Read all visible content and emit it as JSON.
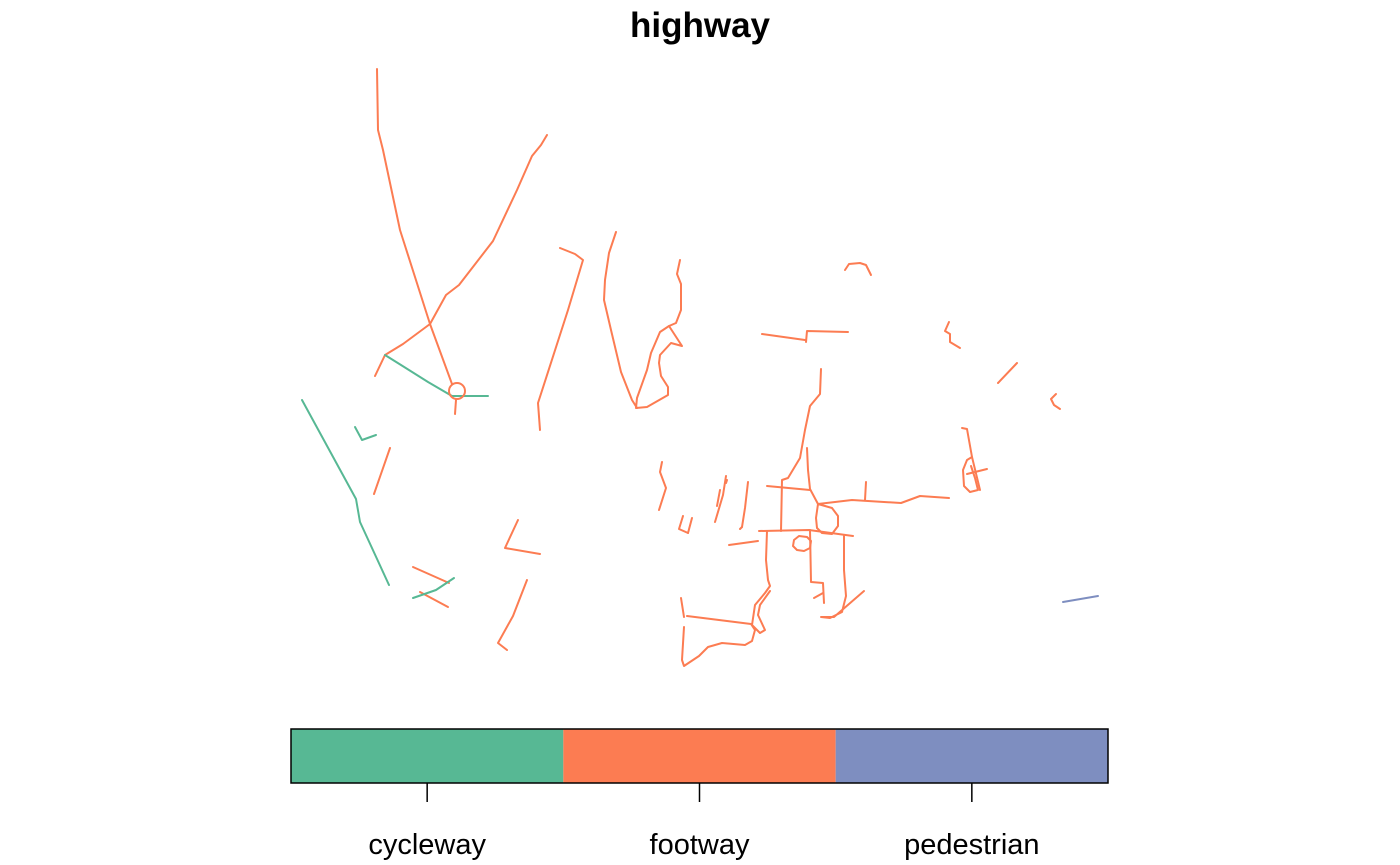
{
  "map": {
    "title": "highway",
    "type": "line-features",
    "legend": {
      "type": "categorical-colorbar",
      "placement": "bottom",
      "categories": [
        {
          "label": "cycleway",
          "color": "#57b894"
        },
        {
          "label": "footway",
          "color": "#fc7c52"
        },
        {
          "label": "pedestrian",
          "color": "#7e8ec0"
        }
      ],
      "border_color": "#000000"
    }
  }
}
